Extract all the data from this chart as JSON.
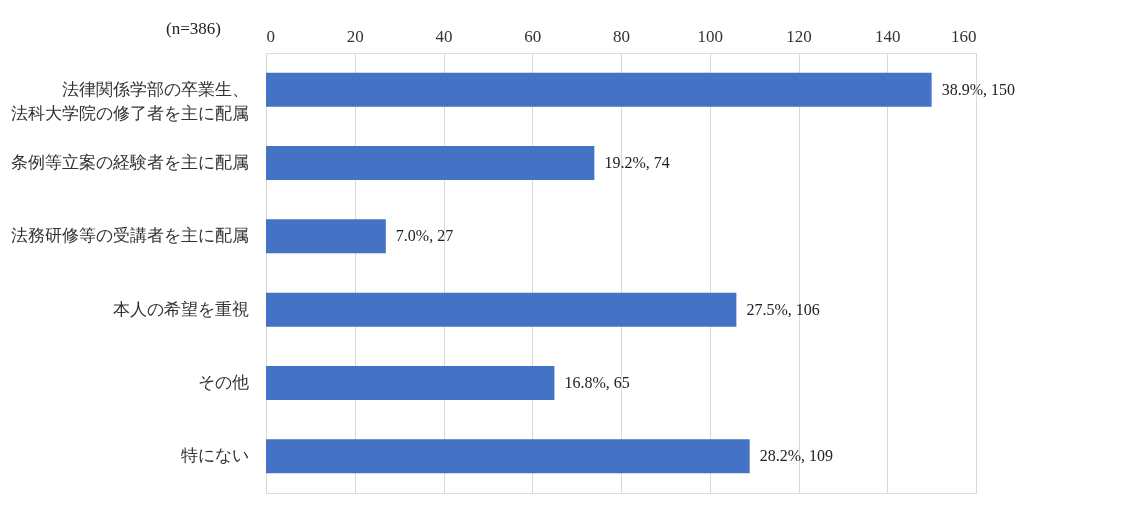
{
  "chart_data": {
    "type": "bar",
    "orientation": "horizontal",
    "categories": [
      "法律関係学部の卒業生、法科大学院の修了者を主に配属",
      "条例等立案の経験者を主に配属",
      "法務研修等の受講者を主に配属",
      "本人の希望を重視",
      "その他",
      "特にない"
    ],
    "values": [
      150,
      74,
      27,
      106,
      65,
      109
    ],
    "value_labels": [
      "38.9%, 150",
      "19.2%, 74",
      "7.0%, 27",
      "27.5%, 106",
      "16.8%, 65",
      "28.2%, 109"
    ],
    "color": "#4472c4",
    "xlim": [
      0,
      160
    ],
    "xticks": [
      0,
      20,
      40,
      60,
      80,
      100,
      120,
      140,
      160
    ],
    "grid": "x",
    "annotations": [
      "(n=386)"
    ]
  }
}
